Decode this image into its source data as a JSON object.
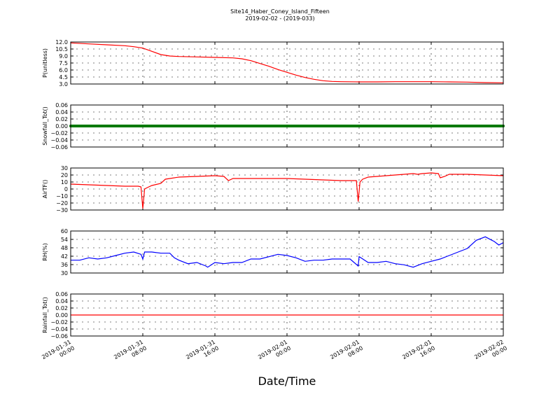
{
  "title": "Site14_Haber_Coney_Island_Fifteen",
  "subtitle": "2019-02-02 - (2019-033)",
  "xlabel": "Date/Time",
  "x_ticks": [
    [
      "2019-01-31",
      "00:00"
    ],
    [
      "2019-01-31",
      "08:00"
    ],
    [
      "2019-01-31",
      "16:00"
    ],
    [
      "2019-02-01",
      "00:00"
    ],
    [
      "2019-02-01",
      "08:00"
    ],
    [
      "2019-02-01",
      "16:00"
    ],
    [
      "2019-02-02",
      "00:00"
    ]
  ],
  "chart_data": [
    {
      "type": "line",
      "ylabel": "P(unitless)",
      "ylim": [
        3.0,
        12.0
      ],
      "yticks": [
        "12.0",
        "10.5",
        "9.0",
        "7.5",
        "6.0",
        "4.5",
        "3.0"
      ],
      "grid": true,
      "color": "#ff0000",
      "x_hours": [
        0,
        2,
        4,
        6,
        7,
        8,
        9,
        10,
        11,
        12,
        14,
        16,
        18,
        19,
        20,
        21,
        22,
        23,
        24,
        25,
        26,
        27,
        28,
        29,
        30,
        32,
        34,
        36,
        38,
        40,
        42,
        44,
        46,
        48
      ],
      "values": [
        11.8,
        11.6,
        11.4,
        11.2,
        11.0,
        10.7,
        10.0,
        9.3,
        9.0,
        8.9,
        8.8,
        8.7,
        8.6,
        8.4,
        8.0,
        7.4,
        6.8,
        6.1,
        5.5,
        4.9,
        4.4,
        4.0,
        3.7,
        3.55,
        3.5,
        3.45,
        3.45,
        3.5,
        3.5,
        3.5,
        3.45,
        3.4,
        3.3,
        3.25
      ]
    },
    {
      "type": "line",
      "ylabel": "Snowfall_Tot()",
      "ylim": [
        -0.06,
        0.06
      ],
      "yticks": [
        "0.06",
        "0.04",
        "0.02",
        "0.00",
        "−0.02",
        "−0.04",
        "−0.06"
      ],
      "grid": true,
      "color": "#007a00",
      "marker": "dots",
      "constant": 0.0
    },
    {
      "type": "line",
      "ylabel": "AirTF()",
      "ylim": [
        -30,
        30
      ],
      "yticks": [
        "30",
        "20",
        "10",
        "0",
        "−10",
        "−20",
        "−30"
      ],
      "grid": true,
      "color": "#ff0000",
      "x_hours": [
        0,
        2,
        4,
        6,
        7.5,
        7.8,
        8.0,
        8.2,
        8.5,
        9,
        10,
        10.5,
        11,
        12,
        14,
        16,
        17,
        17.5,
        18,
        20,
        22,
        24,
        26,
        28,
        30,
        31.7,
        31.9,
        32.1,
        32.4,
        33,
        34,
        36,
        38,
        38.5,
        39,
        40,
        40.8,
        41,
        41.5,
        42,
        44,
        46,
        48
      ],
      "values": [
        7,
        6,
        5,
        4,
        4,
        3,
        -28,
        0,
        2,
        5,
        8,
        14,
        15,
        17,
        18,
        19,
        18,
        12,
        15,
        15,
        15,
        15,
        14,
        13,
        12,
        12,
        -18,
        10,
        14,
        17,
        18,
        20,
        22,
        21,
        22,
        23,
        22,
        16,
        18,
        21,
        21,
        20,
        19
      ]
    },
    {
      "type": "line",
      "ylabel": "RH(%)",
      "ylim": [
        24,
        60
      ],
      "yticks": [
        "60",
        "54",
        "48",
        "42",
        "36",
        "30"
      ],
      "grid": true,
      "color": "#0000ff",
      "x_hours": [
        0,
        1,
        2,
        3,
        4,
        5,
        6,
        7,
        7.8,
        8,
        8.2,
        9,
        10,
        11,
        11.5,
        12,
        13,
        14,
        15,
        15.2,
        16,
        17,
        18,
        19,
        20,
        21,
        22,
        23,
        24,
        25,
        26,
        27,
        28,
        29,
        30,
        31,
        31.9,
        32,
        32.2,
        33,
        34,
        35,
        36,
        37,
        38,
        39,
        40,
        41,
        42,
        43,
        44,
        45,
        46,
        46.5,
        47,
        47.5,
        48
      ],
      "values": [
        35,
        35,
        37,
        36,
        37,
        39,
        41,
        42,
        40,
        36,
        42,
        42,
        41,
        41,
        37,
        35,
        32,
        33,
        30,
        29,
        33,
        32,
        33,
        33,
        36,
        36,
        38,
        40,
        39,
        37,
        34,
        35,
        35,
        36,
        36,
        36,
        30,
        38,
        37,
        33,
        33,
        34,
        32,
        31,
        29,
        32,
        34,
        36,
        39,
        42,
        45,
        52,
        55,
        53,
        51,
        48,
        50
      ]
    },
    {
      "type": "line",
      "ylabel": "Rainfall_Tot()",
      "ylim": [
        -0.06,
        0.06
      ],
      "yticks": [
        "0.06",
        "0.04",
        "0.02",
        "0.00",
        "−0.02",
        "−0.04",
        "−0.06"
      ],
      "grid": true,
      "color": "#ff0000",
      "constant": 0.0
    }
  ]
}
